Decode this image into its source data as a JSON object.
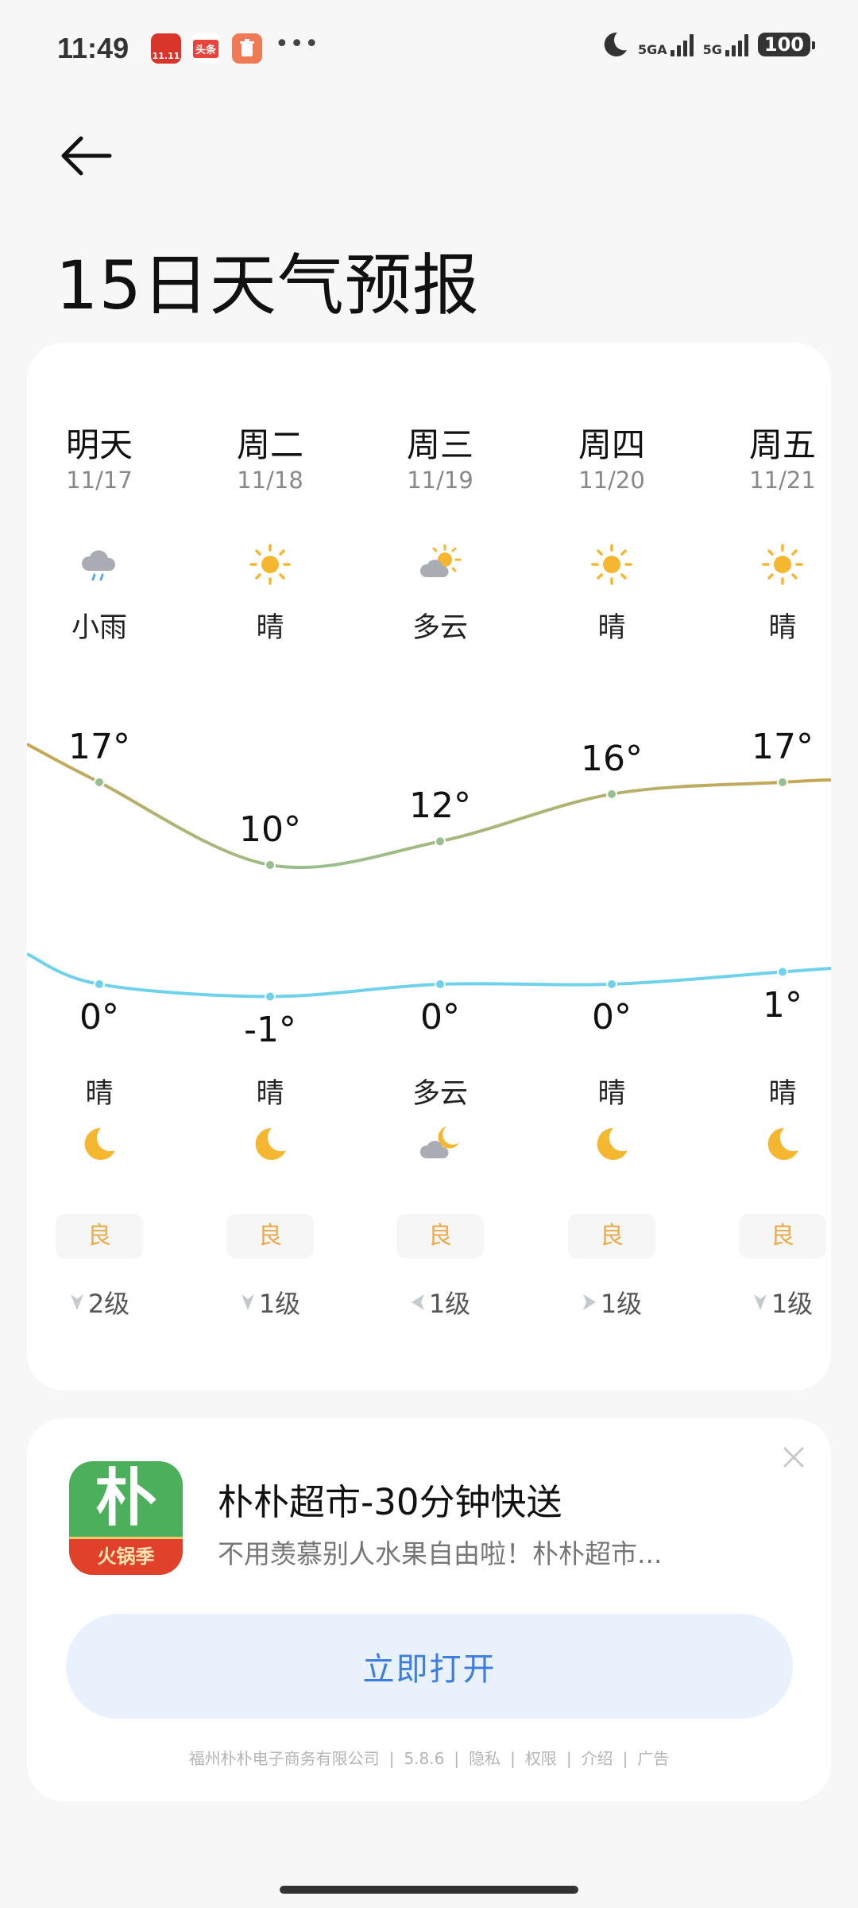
{
  "status_bar": {
    "time": "11:49",
    "notifications": [
      {
        "icon": "tmall-1111-icon",
        "label": "11.11",
        "color": "#d9352b"
      },
      {
        "icon": "toutiao-icon",
        "label": "头条",
        "color": "#e8443b"
      },
      {
        "icon": "cleaner-icon",
        "label": "",
        "color": "#ef7a55"
      }
    ],
    "more": "•••",
    "network1": "5GA",
    "network2": "5G",
    "battery": "100"
  },
  "header": {
    "back_icon": "arrow-left-icon",
    "title": "15日天气预报"
  },
  "forecast": {
    "colors": {
      "high_line_start": "#c8a654",
      "high_line_mid": "#98bf8f",
      "low_line": "#6fd2ea",
      "aqi": "#e9ab4c"
    },
    "days": [
      {
        "name": "明天",
        "date": "11/17",
        "day_icon": "cloud-rain-icon",
        "day_cond": "小雨",
        "high": 17,
        "high_label": "17°",
        "low": 0,
        "low_label": "0°",
        "night_cond": "晴",
        "night_icon": "moon-icon",
        "aqi": "良",
        "wind_dir": "down",
        "wind": "2级"
      },
      {
        "name": "周二",
        "date": "11/18",
        "day_icon": "sun-icon",
        "day_cond": "晴",
        "high": 10,
        "high_label": "10°",
        "low": -1,
        "low_label": "-1°",
        "night_cond": "晴",
        "night_icon": "moon-icon",
        "aqi": "良",
        "wind_dir": "down",
        "wind": "1级"
      },
      {
        "name": "周三",
        "date": "11/19",
        "day_icon": "partly-cloudy-icon",
        "day_cond": "多云",
        "high": 12,
        "high_label": "12°",
        "low": 0,
        "low_label": "0°",
        "night_cond": "多云",
        "night_icon": "moon-cloud-icon",
        "aqi": "良",
        "wind_dir": "left",
        "wind": "1级"
      },
      {
        "name": "周四",
        "date": "11/20",
        "day_icon": "sun-icon",
        "day_cond": "晴",
        "high": 16,
        "high_label": "16°",
        "low": 0,
        "low_label": "0°",
        "night_cond": "晴",
        "night_icon": "moon-icon",
        "aqi": "良",
        "wind_dir": "right",
        "wind": "1级"
      },
      {
        "name": "周五",
        "date": "11/21",
        "day_icon": "sun-icon",
        "day_cond": "晴",
        "high": 17,
        "high_label": "17°",
        "low": 1,
        "low_label": "1°",
        "night_cond": "晴",
        "night_icon": "moon-icon",
        "aqi": "良",
        "wind_dir": "down",
        "wind": "1级"
      }
    ]
  },
  "ad": {
    "app_icon_text": "朴",
    "app_icon_badge": "火锅季",
    "title": "朴朴超市-30分钟快送",
    "subtitle": "不用羡慕别人水果自由啦！朴朴超市...",
    "button": "立即打开",
    "footer": [
      "福州朴朴电子商务有限公司",
      "5.8.6",
      "隐私",
      "权限",
      "介绍",
      "广告"
    ]
  }
}
